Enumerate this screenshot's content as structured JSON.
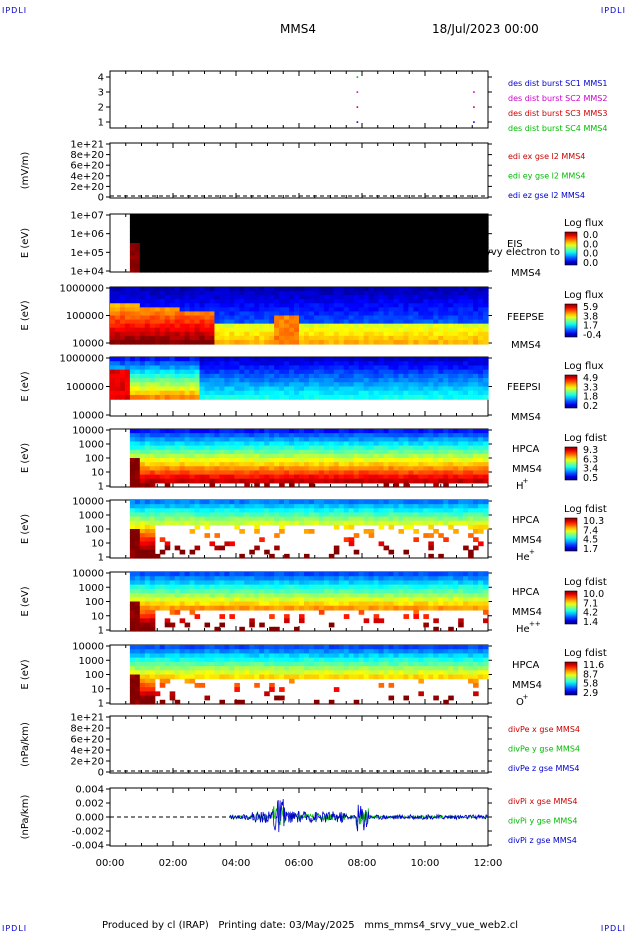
{
  "header": {
    "mission": "MMS4",
    "datetime": "18/Jul/2023 00:00",
    "corner_left": "IPDLI",
    "corner_right": "IPDLI"
  },
  "footer": {
    "produced_by": "Produced by cl (IRAP)",
    "printing_date": "Printing date: 03/May/2025",
    "file": "mms_mms4_srvy_vue_web2.cl"
  },
  "x_axis": {
    "ticks": [
      "00:00",
      "02:00",
      "04:00",
      "06:00",
      "08:00",
      "10:00",
      "12:00"
    ]
  },
  "colors": {
    "red": "#cc0000",
    "green": "#00bb00",
    "blue": "#0000cc",
    "magenta": "#cc00cc"
  },
  "chart_data": [
    {
      "id": "burst",
      "type": "scatter",
      "ylim": [
        0.5,
        4.5
      ],
      "yticks": [
        "4",
        "3",
        "2",
        "1"
      ],
      "legend": [
        {
          "label": "des dist burst SC1 MMS1",
          "color": "#0000cc"
        },
        {
          "label": "des dist burst SC2 MMS2",
          "color": "#cc00cc"
        },
        {
          "label": "des dist burst SC3 MMS3",
          "color": "#cc0000"
        },
        {
          "label": "des dist burst SC4 MMS4",
          "color": "#00bb00"
        }
      ],
      "points": [
        {
          "x": 7.85,
          "y": 4
        },
        {
          "x": 7.85,
          "y": 3
        },
        {
          "x": 7.85,
          "y": 2
        },
        {
          "x": 7.85,
          "y": 1
        },
        {
          "x": 11.55,
          "y": 3
        },
        {
          "x": 11.55,
          "y": 2
        },
        {
          "x": 11.55,
          "y": 1
        }
      ]
    },
    {
      "id": "edi",
      "type": "line",
      "ylabel": "(mV/m)",
      "yticks": [
        "1e+21",
        "8e+20",
        "6e+20",
        "4e+20",
        "2e+20",
        "0"
      ],
      "legend": [
        {
          "label": "edi ex gse l2 MMS4",
          "color": "#cc0000"
        },
        {
          "label": "edi ey gse l2 MMS4",
          "color": "#00bb00"
        },
        {
          "label": "edi ez gse l2 MMS4",
          "color": "#0000cc"
        }
      ]
    },
    {
      "id": "eis",
      "type": "heatmap",
      "ylabel": "E (eV)",
      "yticks": [
        "1e+07",
        "1e+06",
        "1e+05",
        "1e+04"
      ],
      "label": "EIS",
      "sub": "MMS4",
      "overlay": "Ivvy electron to",
      "colorbar_title": "Log flux",
      "colorbar_values": [
        "0.0",
        "0.0",
        "0.0",
        "0.0"
      ]
    },
    {
      "id": "feepse",
      "type": "heatmap",
      "ylabel": "E (eV)",
      "yticks": [
        "1000000",
        "100000",
        "10000"
      ],
      "label": "FEEPSE",
      "sub": "MMS4",
      "colorbar_title": "Log flux",
      "colorbar_values": [
        "5.9",
        "3.8",
        "1.7",
        "-0.4"
      ]
    },
    {
      "id": "feepsi",
      "type": "heatmap",
      "ylabel": "E (eV)",
      "yticks": [
        "1000000",
        "100000",
        "10000"
      ],
      "label": "FEEPSI",
      "sub": "MMS4",
      "colorbar_title": "Log flux",
      "colorbar_values": [
        "4.9",
        "3.3",
        "1.8",
        "0.2"
      ]
    },
    {
      "id": "hpca_h",
      "type": "heatmap",
      "ylabel": "E (eV)",
      "yticks": [
        "10000",
        "1000",
        "100",
        "10",
        "1"
      ],
      "label": "HPCA",
      "sub": "MMS4",
      "species": "H",
      "charge": "+",
      "colorbar_title": "Log fdist",
      "colorbar_values": [
        "9.3",
        "6.3",
        "3.4",
        "0.5"
      ]
    },
    {
      "id": "hpca_he",
      "type": "heatmap",
      "ylabel": "E (eV)",
      "yticks": [
        "10000",
        "1000",
        "100",
        "10",
        "1"
      ],
      "label": "HPCA",
      "sub": "MMS4",
      "species": "He",
      "charge": "+",
      "colorbar_title": "Log fdist",
      "colorbar_values": [
        "10.3",
        "7.4",
        "4.5",
        "1.7"
      ]
    },
    {
      "id": "hpca_hepp",
      "type": "heatmap",
      "ylabel": "E (eV)",
      "yticks": [
        "10000",
        "1000",
        "100",
        "10",
        "1"
      ],
      "label": "HPCA",
      "sub": "MMS4",
      "species": "He",
      "charge": "++",
      "colorbar_title": "Log fdist",
      "colorbar_values": [
        "10.0",
        "7.1",
        "4.2",
        "1.4"
      ]
    },
    {
      "id": "hpca_o",
      "type": "heatmap",
      "ylabel": "E (eV)",
      "yticks": [
        "10000",
        "1000",
        "100",
        "10",
        "1"
      ],
      "label": "HPCA",
      "sub": "MMS4",
      "species": "O",
      "charge": "+",
      "colorbar_title": "Log fdist",
      "colorbar_values": [
        "11.6",
        "8.7",
        "5.8",
        "2.9"
      ]
    },
    {
      "id": "divpe",
      "type": "line",
      "ylabel": "(nPa/km)",
      "yticks": [
        "1e+21",
        "8e+20",
        "6e+20",
        "4e+20",
        "2e+20",
        "0"
      ],
      "legend": [
        {
          "label": "divPe x gse MMS4",
          "color": "#cc0000"
        },
        {
          "label": "divPe y gse MMS4",
          "color": "#00bb00"
        },
        {
          "label": "divPe z gse MMS4",
          "color": "#0000cc"
        }
      ]
    },
    {
      "id": "divpi",
      "type": "line",
      "ylabel": "(nPa/km)",
      "ylim": [
        -0.005,
        0.005
      ],
      "yticks": [
        "0.004",
        "0.002",
        "0.000",
        "-0.002",
        "-0.004"
      ],
      "legend": [
        {
          "label": "divPi x gse MMS4",
          "color": "#cc0000"
        },
        {
          "label": "divPi y gse MMS4",
          "color": "#00bb00"
        },
        {
          "label": "divPi z gse MMS4",
          "color": "#0000cc"
        }
      ]
    }
  ]
}
